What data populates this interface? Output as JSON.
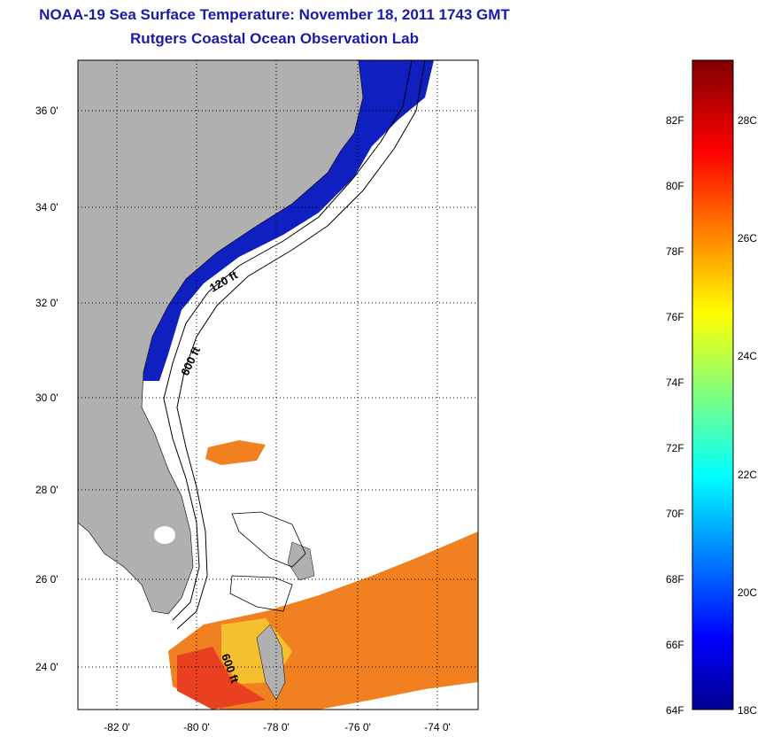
{
  "title": {
    "line1": "NOAA-19 Sea Surface Temperature:  November 18, 2011 1743 GMT",
    "line2": "Rutgers Coastal Ocean Observation Lab"
  },
  "map": {
    "lat_labels": [
      "36 0'",
      "34 0'",
      "32 0'",
      "30 0'",
      "28 0'",
      "26 0'",
      "24 0'"
    ],
    "lon_labels": [
      "-82 0'",
      "-80 0'",
      "-78 0'",
      "-76 0'",
      "-74 0'"
    ],
    "contour_labels": [
      "120 ft",
      "600 ft",
      "600 ft"
    ],
    "colors": {
      "land": "#b0b0b0",
      "cold_water": "#1020c0",
      "warm_water": "#f08020",
      "grid": "#000000"
    }
  },
  "colorbar": {
    "fahrenheit_labels": [
      "82F",
      "80F",
      "78F",
      "76F",
      "74F",
      "72F",
      "70F",
      "68F",
      "66F",
      "64F"
    ],
    "celsius_labels": [
      "28C",
      "26C",
      "24C",
      "22C",
      "20C",
      "18C"
    ],
    "colormap": "jet"
  }
}
